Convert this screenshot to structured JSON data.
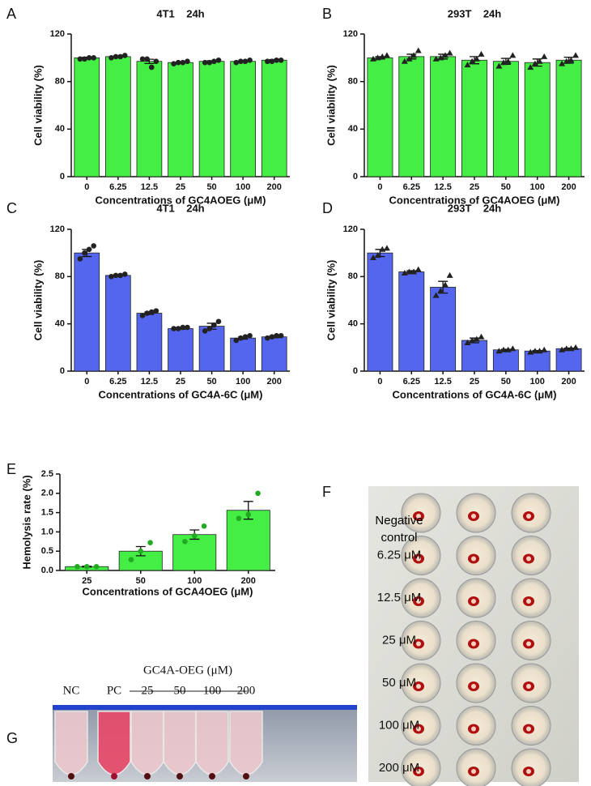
{
  "chart_data": [
    {
      "type": "bar",
      "panel_label": "A",
      "title": "4T1    24h",
      "ylabel": "Cell viability (%)",
      "xlabel": "Concentrations of GC4AOEG (μM)",
      "categories": [
        "0",
        "6.25",
        "12.5",
        "25",
        "50",
        "100",
        "200"
      ],
      "values": [
        100,
        101,
        97,
        96,
        97,
        97,
        98
      ],
      "errors": [
        0.5,
        0.5,
        1.8,
        0.5,
        0.5,
        0.5,
        0.5
      ],
      "points": [
        [
          99,
          99,
          100,
          100
        ],
        [
          100,
          101,
          101,
          102
        ],
        [
          99,
          99,
          92,
          97
        ],
        [
          95,
          96,
          96,
          97
        ],
        [
          96,
          96,
          97,
          98
        ],
        [
          96,
          97,
          97,
          98
        ],
        [
          97,
          97,
          98,
          98
        ]
      ],
      "color": "#44ee44",
      "marker": "circle",
      "ylim": [
        0,
        120
      ],
      "yticks": [
        0,
        40,
        80,
        120
      ]
    },
    {
      "type": "bar",
      "panel_label": "B",
      "title": "293T    24h",
      "ylabel": "Cell viability (%)",
      "xlabel": "Concentrations of GC4AOEG (μM)",
      "categories": [
        "0",
        "6.25",
        "12.5",
        "25",
        "50",
        "100",
        "200"
      ],
      "values": [
        100,
        101,
        101,
        98,
        97,
        96,
        98
      ],
      "errors": [
        1,
        2,
        2,
        3,
        2.5,
        3,
        2.5
      ],
      "points": [
        [
          99,
          100,
          101,
          102
        ],
        [
          97,
          99,
          102,
          106
        ],
        [
          99,
          100,
          102,
          104
        ],
        [
          94,
          97,
          99,
          103
        ],
        [
          93,
          96,
          97,
          102
        ],
        [
          92,
          95,
          97,
          101
        ],
        [
          95,
          97,
          98,
          102
        ]
      ],
      "color": "#44ee44",
      "marker": "triangle",
      "ylim": [
        0,
        120
      ],
      "yticks": [
        0,
        40,
        80,
        120
      ]
    },
    {
      "type": "bar",
      "panel_label": "C",
      "title": "4T1    24h",
      "ylabel": "Cell viability (%)",
      "xlabel": "Concentrations of GC4A-6C (μM)",
      "categories": [
        "0",
        "6.25",
        "12.5",
        "25",
        "50",
        "100",
        "200"
      ],
      "values": [
        100,
        81,
        49,
        36,
        38,
        28,
        29
      ],
      "errors": [
        3,
        0.5,
        1,
        0.5,
        2.5,
        1,
        0.8
      ],
      "points": [
        [
          95,
          100,
          103,
          106
        ],
        [
          80,
          81,
          81,
          82
        ],
        [
          47,
          49,
          50,
          51
        ],
        [
          36,
          36,
          37,
          37
        ],
        [
          34,
          36,
          39,
          42
        ],
        [
          26,
          28,
          29,
          30
        ],
        [
          28,
          29,
          30,
          30
        ]
      ],
      "color": "#5566ee",
      "marker": "circle",
      "ylim": [
        0,
        120
      ],
      "yticks": [
        0,
        40,
        80,
        120
      ]
    },
    {
      "type": "bar",
      "panel_label": "D",
      "title": "293T    24h",
      "ylabel": "Cell viability (%)",
      "xlabel": "Concentrations of GC4A-6C (μM)",
      "categories": [
        "0",
        "6.25",
        "12.5",
        "25",
        "50",
        "100",
        "200"
      ],
      "values": [
        100,
        84,
        71,
        26,
        18,
        17,
        19
      ],
      "errors": [
        3,
        1,
        5,
        2,
        0.5,
        0.5,
        0.5
      ],
      "points": [
        [
          96,
          98,
          103,
          104
        ],
        [
          83,
          84,
          84,
          86
        ],
        [
          64,
          68,
          73,
          81
        ],
        [
          24,
          26,
          27,
          29
        ],
        [
          17,
          18,
          18,
          19
        ],
        [
          16,
          17,
          17,
          18
        ],
        [
          18,
          19,
          19,
          20
        ]
      ],
      "color": "#5566ee",
      "marker": "triangle",
      "ylim": [
        0,
        120
      ],
      "yticks": [
        0,
        40,
        80,
        120
      ]
    },
    {
      "type": "bar",
      "panel_label": "E",
      "ylabel": "Hemolysis rate (%)",
      "xlabel": "Concentrations of GCA4OEG (μM)",
      "categories": [
        "25",
        "50",
        "100",
        "200"
      ],
      "values": [
        0.1,
        0.5,
        0.93,
        1.56
      ],
      "errors": [
        0.01,
        0.12,
        0.12,
        0.23
      ],
      "points": [
        [
          0.1,
          0.1,
          0.1
        ],
        [
          0.28,
          0.5,
          0.72
        ],
        [
          0.75,
          0.9,
          1.15
        ],
        [
          1.35,
          1.45,
          2.0
        ]
      ],
      "color": "#44ee44",
      "marker": "circle",
      "point_color": "#22aa22",
      "ylim": [
        0,
        2.5
      ],
      "yticks": [
        {
          "value": 0,
          "label": "0.0"
        },
        0.5,
        {
          "value": 1,
          "label": "1.0"
        },
        1.5,
        {
          "value": 2,
          "label": "2.0"
        },
        2.5
      ]
    }
  ],
  "panel_f": {
    "panel_label": "F",
    "row_labels": [
      "Negative control",
      "6.25 μM",
      "12.5 μM",
      "25 μM",
      "50 μM",
      "100 μM",
      "200 μM"
    ]
  },
  "panel_g": {
    "panel_label": "G",
    "group_label": "GC4A-OEG (μM)",
    "tube_labels": [
      "NC",
      "PC",
      "25",
      "50",
      "100",
      "200"
    ]
  }
}
